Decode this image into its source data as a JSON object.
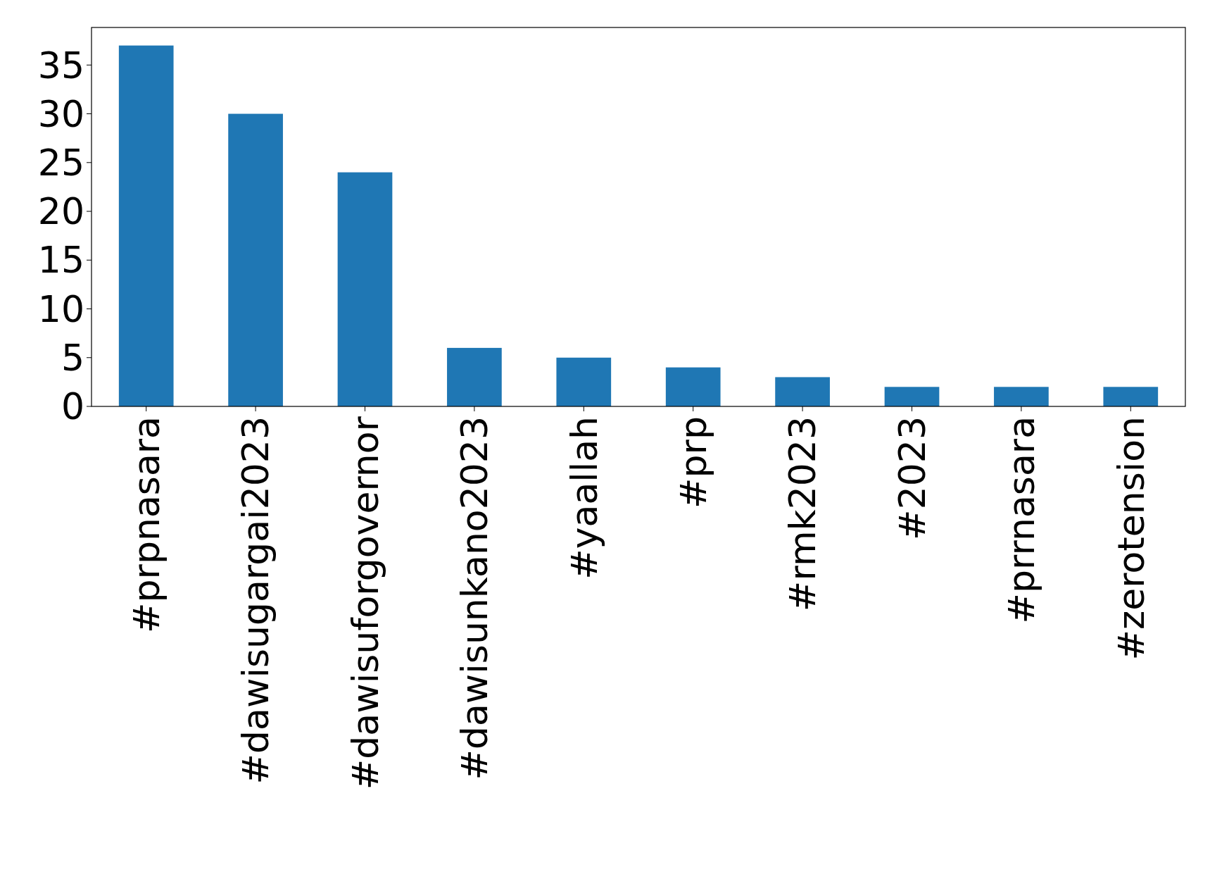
{
  "chart_data": {
    "type": "bar",
    "categories": [
      "#prpnasara",
      "#dawisugargai2023",
      "#dawisuforgovernor",
      "#dawisunkano2023",
      "#yaallah",
      "#prp",
      "#rmk2023",
      "#2023",
      "#prrnasara",
      "#zerotension"
    ],
    "values": [
      37,
      30,
      24,
      6,
      5,
      4,
      3,
      2,
      2,
      2
    ],
    "color": "#1f77b4",
    "ylim": [
      0,
      38.85
    ],
    "yticks": [
      0,
      5,
      10,
      15,
      20,
      25,
      30,
      35
    ],
    "grid": false
  }
}
